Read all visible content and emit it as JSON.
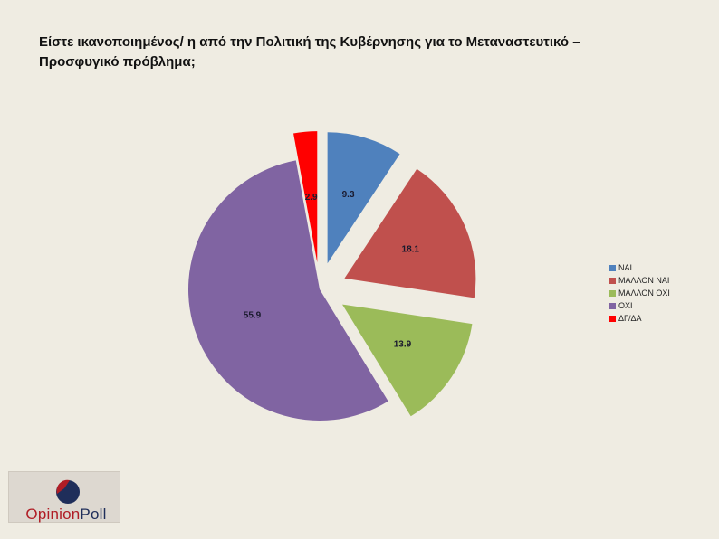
{
  "title_lines": [
    "Είστε ικανοποιημένος/ η από την Πολιτική της Κυβέρνησης για το Μεταναστευτικό –",
    "Προσφυγικό  πρόβλημα;"
  ],
  "chart_data": {
    "type": "pie",
    "exploded": true,
    "slices": [
      {
        "label": "ΝΑΙ",
        "value": 9.3,
        "color": "#4f81bd"
      },
      {
        "label": "ΜΑΛΛΟΝ ΝΑΙ",
        "value": 18.1,
        "color": "#c0504d"
      },
      {
        "label": "ΜΑΛΛΟΝ ΟΧΙ",
        "value": 13.9,
        "color": "#9bbb59"
      },
      {
        "label": "ΟΧΙ",
        "value": 55.9,
        "color": "#8064a2"
      },
      {
        "label": "ΔΓ/ΔΑ",
        "value": 2.9,
        "color": "#ff0000"
      }
    ],
    "data_labels": [
      "9.3",
      "18.1",
      "13.9",
      "55.9",
      "2.9"
    ],
    "legend_position": "right"
  },
  "logo": {
    "word1": "Opinion",
    "word2": "Poll",
    "colors": {
      "red": "#b01d25",
      "navy": "#1f2e5a"
    }
  }
}
